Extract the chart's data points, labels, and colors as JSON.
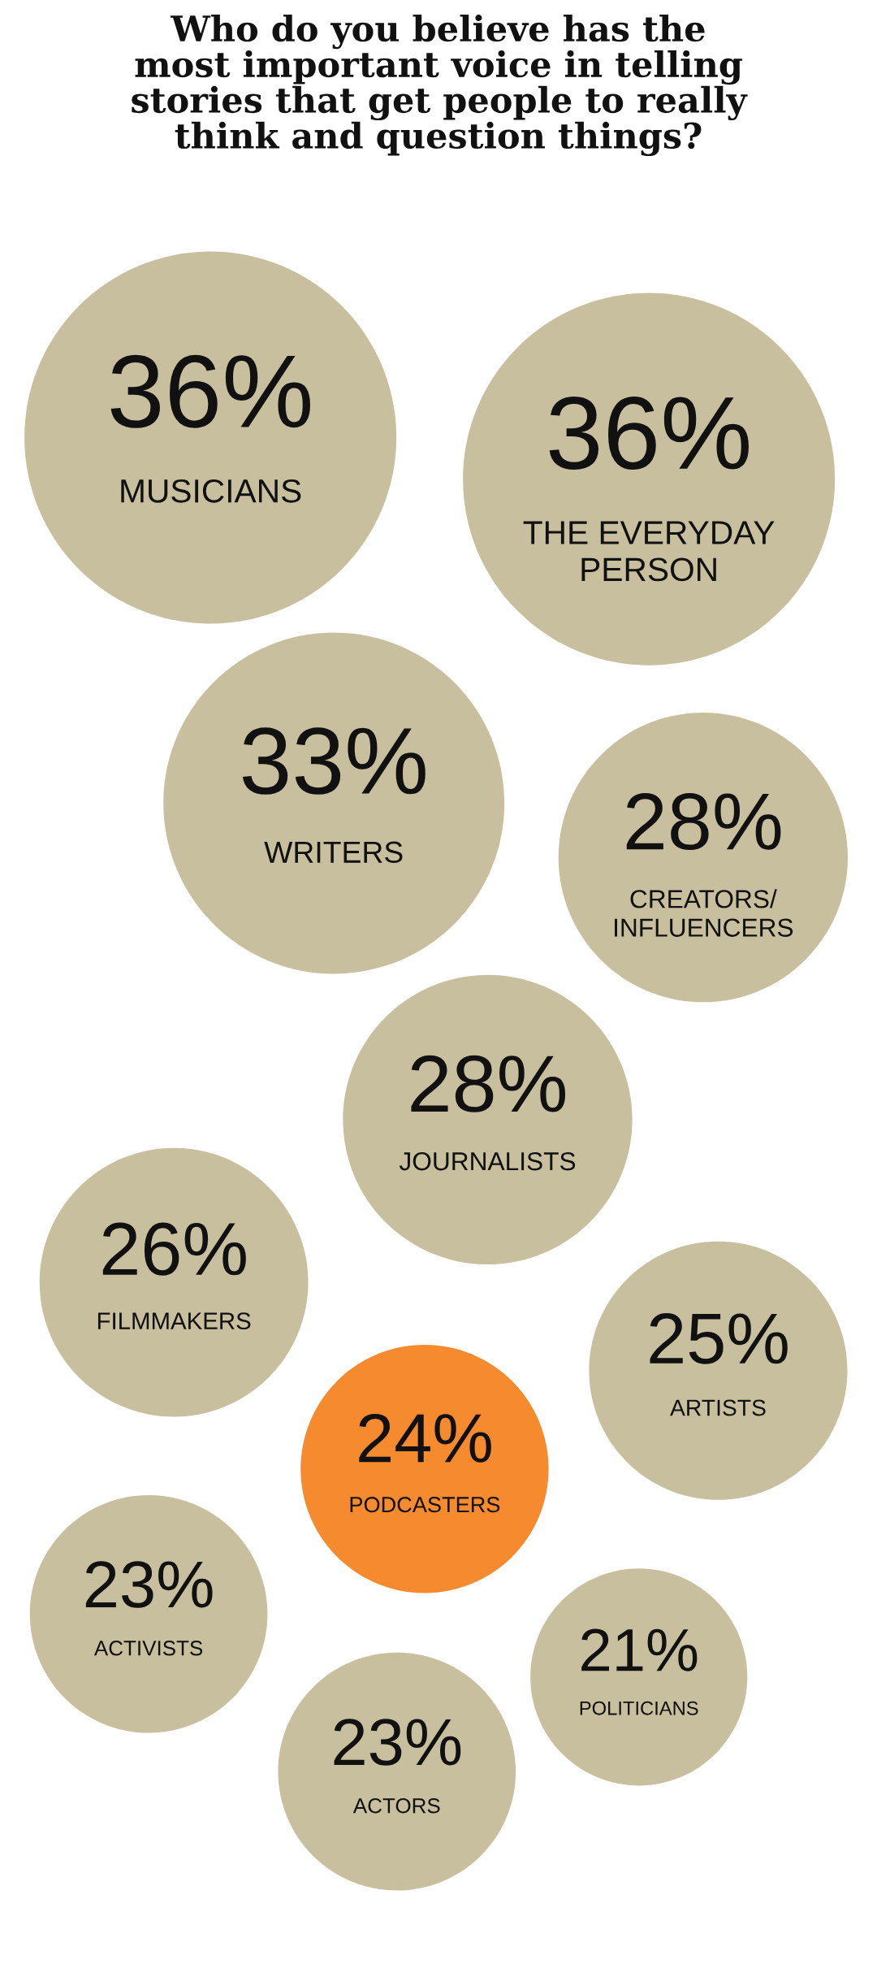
{
  "chart_data": {
    "type": "other",
    "title": "Who do you believe has the\nmost important voice in telling\nstories that get people to really\nthink and question things?",
    "categories": [
      "MUSICIANS",
      "THE EVERYDAY\nPERSON",
      "WRITERS",
      "CREATORS/\nINFLUENCERS",
      "JOURNALISTS",
      "FILMMAKERS",
      "ARTISTS",
      "PODCASTERS",
      "ACTIVISTS",
      "POLITICIANS",
      "ACTORS"
    ],
    "values": [
      36,
      36,
      33,
      28,
      28,
      26,
      25,
      24,
      23,
      21,
      23
    ],
    "value_labels": [
      "36%",
      "36%",
      "33%",
      "28%",
      "28%",
      "26%",
      "25%",
      "24%",
      "23%",
      "21%",
      "23%"
    ],
    "colors": [
      "#c8bf9e",
      "#c8bf9e",
      "#c8bf9e",
      "#c8bf9e",
      "#c8bf9e",
      "#c8bf9e",
      "#c8bf9e",
      "#f58a2e",
      "#c8bf9e",
      "#c8bf9e",
      "#c8bf9e"
    ]
  }
}
